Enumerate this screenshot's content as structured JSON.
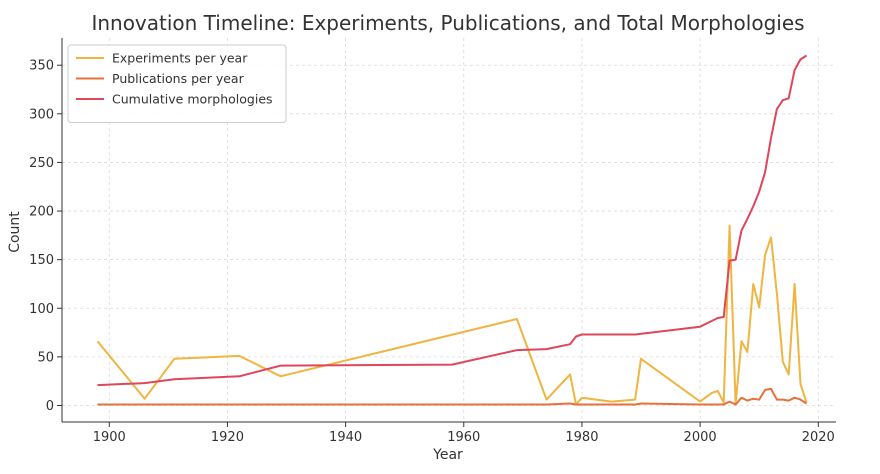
{
  "chart_data": {
    "type": "line",
    "title": "Innovation Timeline: Experiments, Publications, and Total Morphologies",
    "xlabel": "Year",
    "ylabel": "Count",
    "xlim": [
      1892,
      2023
    ],
    "ylim": [
      -17,
      378
    ],
    "xticks": [
      1900,
      1920,
      1940,
      1960,
      1980,
      2000,
      2020
    ],
    "yticks": [
      0,
      50,
      100,
      150,
      200,
      250,
      300,
      350
    ],
    "grid": true,
    "legend_position": "top-left",
    "series": [
      {
        "name": "Experiments per year",
        "color": "#f0b440",
        "x": [
          1898,
          1906,
          1911,
          1922,
          1929,
          1969,
          1974,
          1978,
          1979,
          1980,
          1985,
          1989,
          1990,
          2000,
          2002,
          2003,
          2004,
          2005,
          2006,
          2007,
          2008,
          2009,
          2010,
          2011,
          2012,
          2013,
          2014,
          2015,
          2016,
          2017,
          2018
        ],
        "values": [
          66,
          7,
          48,
          51,
          30,
          89,
          6,
          32,
          1,
          8,
          4,
          6,
          48,
          4,
          13,
          15,
          3,
          185,
          2,
          66,
          55,
          125,
          101,
          155,
          173,
          115,
          45,
          32,
          125,
          22,
          3
        ]
      },
      {
        "name": "Publications per year",
        "color": "#e8703a",
        "x": [
          1898,
          1906,
          1911,
          1922,
          1929,
          1969,
          1974,
          1978,
          1979,
          1980,
          1985,
          1989,
          1990,
          2000,
          2002,
          2003,
          2004,
          2005,
          2006,
          2007,
          2008,
          2009,
          2010,
          2011,
          2012,
          2013,
          2014,
          2015,
          2016,
          2017,
          2018
        ],
        "values": [
          1,
          1,
          1,
          1,
          1,
          1,
          1,
          2,
          1,
          1,
          1,
          1,
          2,
          1,
          1,
          1,
          1,
          4,
          1,
          8,
          5,
          7,
          6,
          16,
          17,
          6,
          6,
          5,
          8,
          6,
          2
        ]
      },
      {
        "name": "Cumulative morphologies",
        "color": "#e0465a",
        "x": [
          1898,
          1906,
          1911,
          1922,
          1929,
          1958,
          1969,
          1974,
          1978,
          1979,
          1980,
          1989,
          2000,
          2002,
          2003,
          2004,
          2005,
          2006,
          2007,
          2008,
          2009,
          2010,
          2011,
          2012,
          2013,
          2014,
          2015,
          2016,
          2017,
          2018
        ],
        "values": [
          21,
          23,
          27,
          30,
          41,
          42,
          57,
          58,
          63,
          71,
          73,
          73,
          81,
          87,
          90,
          91,
          149,
          150,
          180,
          192,
          205,
          220,
          240,
          275,
          305,
          314,
          316,
          345,
          356,
          360
        ]
      }
    ]
  }
}
